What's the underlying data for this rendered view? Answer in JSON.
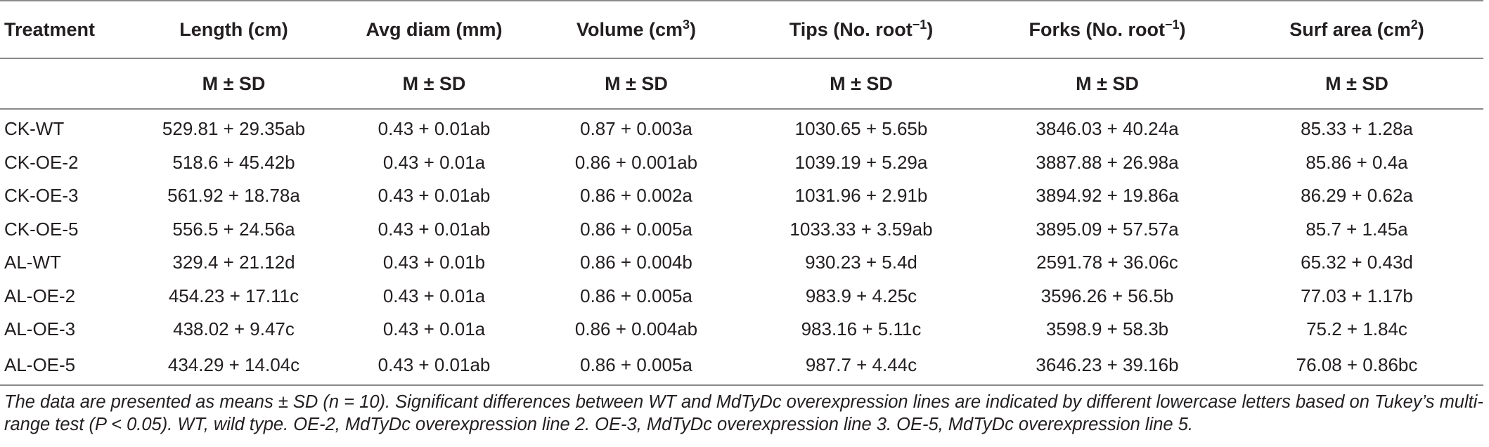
{
  "table": {
    "headers": {
      "treatment": "Treatment",
      "length": "Length (cm)",
      "avg_diam": "Avg diam (mm)",
      "volume_base": "Volume (cm",
      "volume_sup": "3",
      "volume_close": ")",
      "tips_base": "Tips (No. root",
      "tips_sup": "−1",
      "tips_close": ")",
      "forks_base": "Forks (No. root",
      "forks_sup": "−1",
      "forks_close": ")",
      "surf_base": "Surf area (cm",
      "surf_sup": "2",
      "surf_close": ")"
    },
    "subheader": "M ± SD",
    "rows": [
      {
        "treatment": "CK-WT",
        "length": "529.81 + 29.35ab",
        "avg_diam": "0.43 + 0.01ab",
        "volume": "0.87 + 0.003a",
        "tips": "1030.65 + 5.65b",
        "forks": "3846.03 + 40.24a",
        "surf": "85.33 + 1.28a"
      },
      {
        "treatment": "CK-OE-2",
        "length": "518.6 + 45.42b",
        "avg_diam": "0.43 + 0.01a",
        "volume": "0.86 + 0.001ab",
        "tips": "1039.19 + 5.29a",
        "forks": "3887.88 + 26.98a",
        "surf": "85.86 + 0.4a"
      },
      {
        "treatment": "CK-OE-3",
        "length": "561.92 + 18.78a",
        "avg_diam": "0.43 + 0.01ab",
        "volume": "0.86 + 0.002a",
        "tips": "1031.96 + 2.91b",
        "forks": "3894.92 + 19.86a",
        "surf": "86.29 + 0.62a"
      },
      {
        "treatment": "CK-OE-5",
        "length": "556.5 + 24.56a",
        "avg_diam": "0.43 + 0.01ab",
        "volume": "0.86 + 0.005a",
        "tips": "1033.33 + 3.59ab",
        "forks": "3895.09 + 57.57a",
        "surf": "85.7 + 1.45a"
      },
      {
        "treatment": "AL-WT",
        "length": "329.4 + 21.12d",
        "avg_diam": "0.43 + 0.01b",
        "volume": "0.86 + 0.004b",
        "tips": "930.23 + 5.4d",
        "forks": "2591.78 + 36.06c",
        "surf": "65.32 + 0.43d"
      },
      {
        "treatment": "AL-OE-2",
        "length": "454.23 + 17.11c",
        "avg_diam": "0.43 + 0.01a",
        "volume": "0.86 + 0.005a",
        "tips": "983.9 + 4.25c",
        "forks": "3596.26 + 56.5b",
        "surf": "77.03 + 1.17b"
      },
      {
        "treatment": "AL-OE-3",
        "length": "438.02 + 9.47c",
        "avg_diam": "0.43 + 0.01a",
        "volume": "0.86 + 0.004ab",
        "tips": "983.16 + 5.11c",
        "forks": "3598.9 + 58.3b",
        "surf": "75.2 + 1.84c"
      },
      {
        "treatment": "AL-OE-5",
        "length": "434.29 + 14.04c",
        "avg_diam": "0.43 + 0.01ab",
        "volume": "0.86 + 0.005a",
        "tips": "987.7 + 4.44c",
        "forks": "3646.23 + 39.16b",
        "surf": "76.08 + 0.86bc"
      }
    ]
  },
  "footnote": "The data are presented as means ± SD (n = 10). Significant differences between WT and MdTyDc overexpression lines are indicated by different lowercase letters based on Tukey’s multi-range test (P < 0.05). WT, wild type. OE-2, MdTyDc overexpression line 2. OE-3, MdTyDc overexpression line 3. OE-5, MdTyDc overexpression line 5."
}
